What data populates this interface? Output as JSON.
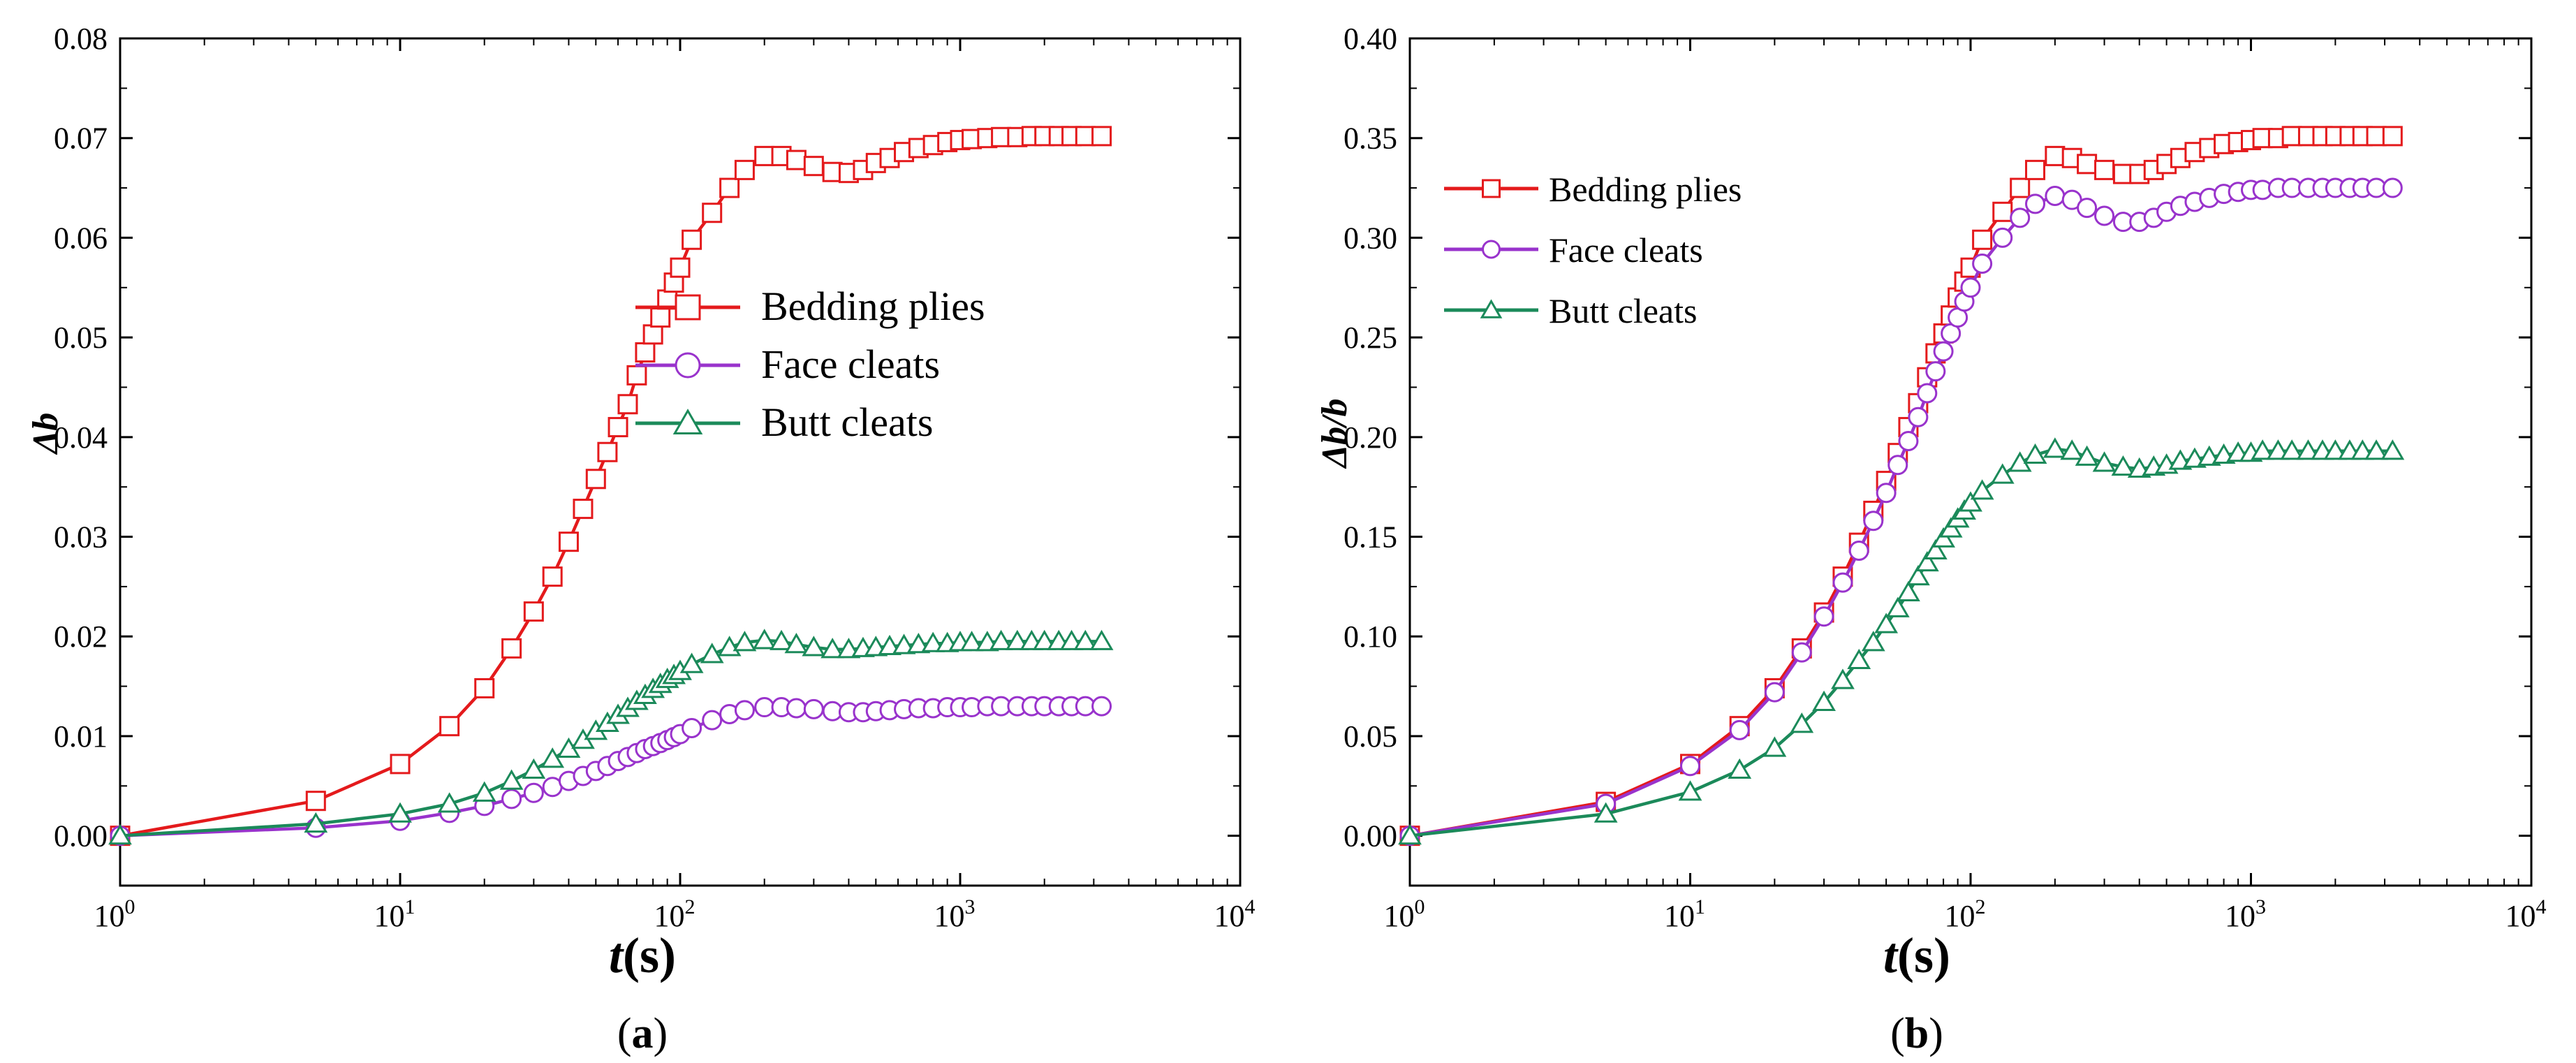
{
  "chart_data": [
    {
      "type": "line",
      "panel_label": "a",
      "title": "",
      "xlabel": "t",
      "xlabel_unit": "(s)",
      "ylabel": "Δb",
      "xscale": "log",
      "xlim": [
        1,
        10000
      ],
      "ylim": [
        -0.005,
        0.08
      ],
      "x_ticks": [
        {
          "base": "10",
          "exp": "0",
          "value": 1
        },
        {
          "base": "10",
          "exp": "1",
          "value": 10
        },
        {
          "base": "10",
          "exp": "2",
          "value": 100
        },
        {
          "base": "10",
          "exp": "3",
          "value": 1000
        },
        {
          "base": "10",
          "exp": "4",
          "value": 10000
        }
      ],
      "y_ticks": [
        "0.00",
        "0.01",
        "0.02",
        "0.03",
        "0.04",
        "0.05",
        "0.06",
        "0.07",
        "0.08"
      ],
      "legend_position": "center-right",
      "x": [
        1,
        5,
        10,
        15,
        20,
        25,
        30,
        35,
        40,
        45,
        50,
        55,
        60,
        65,
        70,
        75,
        80,
        85,
        90,
        95,
        100,
        110,
        130,
        150,
        170,
        200,
        230,
        260,
        300,
        350,
        400,
        450,
        500,
        560,
        630,
        710,
        800,
        900,
        1000,
        1100,
        1250,
        1400,
        1600,
        1800,
        2000,
        2250,
        2500,
        2800,
        3200
      ],
      "series": [
        {
          "name": "Bedding plies",
          "color": "#e41a1c",
          "marker": "square",
          "values": [
            0.0,
            0.0035,
            0.0072,
            0.011,
            0.0148,
            0.0188,
            0.0225,
            0.026,
            0.0295,
            0.0328,
            0.0358,
            0.0385,
            0.041,
            0.0433,
            0.0462,
            0.0485,
            0.0503,
            0.052,
            0.0538,
            0.0555,
            0.057,
            0.0598,
            0.0625,
            0.065,
            0.0668,
            0.0682,
            0.0682,
            0.0678,
            0.0672,
            0.0666,
            0.0665,
            0.0668,
            0.0675,
            0.068,
            0.0686,
            0.069,
            0.0693,
            0.0696,
            0.0698,
            0.0699,
            0.07,
            0.0701,
            0.0701,
            0.0702,
            0.0702,
            0.0702,
            0.0702,
            0.0702,
            0.0702
          ]
        },
        {
          "name": "Face cleats",
          "color": "#9933cc",
          "marker": "circle",
          "values": [
            0.0,
            0.0008,
            0.0015,
            0.0023,
            0.003,
            0.0037,
            0.0043,
            0.0049,
            0.0055,
            0.006,
            0.0065,
            0.007,
            0.0075,
            0.0079,
            0.0083,
            0.0087,
            0.009,
            0.0093,
            0.0096,
            0.0099,
            0.0102,
            0.0108,
            0.0116,
            0.0122,
            0.0126,
            0.0129,
            0.0129,
            0.0128,
            0.0127,
            0.0125,
            0.0124,
            0.0124,
            0.0125,
            0.0126,
            0.0127,
            0.0128,
            0.0128,
            0.0129,
            0.0129,
            0.0129,
            0.013,
            0.013,
            0.013,
            0.013,
            0.013,
            0.013,
            0.013,
            0.013,
            0.013
          ]
        },
        {
          "name": "Butt cleats",
          "color": "#1b8a5a",
          "marker": "triangle",
          "values": [
            0.0,
            0.0012,
            0.0022,
            0.0032,
            0.0043,
            0.0055,
            0.0066,
            0.0077,
            0.0087,
            0.0096,
            0.0105,
            0.0113,
            0.0121,
            0.0128,
            0.0135,
            0.0141,
            0.0147,
            0.0152,
            0.0157,
            0.0161,
            0.0165,
            0.0172,
            0.0182,
            0.0189,
            0.0194,
            0.0196,
            0.0195,
            0.0192,
            0.0189,
            0.0187,
            0.0187,
            0.0188,
            0.0189,
            0.019,
            0.0191,
            0.0192,
            0.0193,
            0.0193,
            0.0194,
            0.0194,
            0.0194,
            0.0195,
            0.0195,
            0.0195,
            0.0195,
            0.0195,
            0.0195,
            0.0195,
            0.0195
          ]
        }
      ]
    },
    {
      "type": "line",
      "panel_label": "b",
      "title": "",
      "xlabel": "t",
      "xlabel_unit": "(s)",
      "ylabel": "Δb/b",
      "xscale": "log",
      "xlim": [
        1,
        10000
      ],
      "ylim": [
        -0.025,
        0.4
      ],
      "x_ticks": [
        {
          "base": "10",
          "exp": "0",
          "value": 1
        },
        {
          "base": "10",
          "exp": "1",
          "value": 10
        },
        {
          "base": "10",
          "exp": "2",
          "value": 100
        },
        {
          "base": "10",
          "exp": "3",
          "value": 1000
        },
        {
          "base": "10",
          "exp": "4",
          "value": 10000
        }
      ],
      "y_ticks": [
        "0.00",
        "0.05",
        "0.10",
        "0.15",
        "0.20",
        "0.25",
        "0.30",
        "0.35",
        "0.40"
      ],
      "legend_position": "top-left",
      "x": [
        1,
        5,
        10,
        15,
        20,
        25,
        30,
        35,
        40,
        45,
        50,
        55,
        60,
        65,
        70,
        75,
        80,
        85,
        90,
        95,
        100,
        110,
        130,
        150,
        170,
        200,
        230,
        260,
        300,
        350,
        400,
        450,
        500,
        560,
        630,
        710,
        800,
        900,
        1000,
        1100,
        1250,
        1400,
        1600,
        1800,
        2000,
        2250,
        2500,
        2800,
        3200
      ],
      "series": [
        {
          "name": "Bedding plies",
          "color": "#e41a1c",
          "marker": "square",
          "values": [
            0.0,
            0.017,
            0.036,
            0.055,
            0.074,
            0.094,
            0.112,
            0.13,
            0.147,
            0.163,
            0.178,
            0.192,
            0.205,
            0.217,
            0.23,
            0.242,
            0.252,
            0.261,
            0.27,
            0.278,
            0.285,
            0.299,
            0.313,
            0.325,
            0.334,
            0.341,
            0.34,
            0.337,
            0.334,
            0.332,
            0.332,
            0.334,
            0.337,
            0.34,
            0.343,
            0.345,
            0.347,
            0.348,
            0.349,
            0.35,
            0.35,
            0.351,
            0.351,
            0.351,
            0.351,
            0.351,
            0.351,
            0.351,
            0.351
          ]
        },
        {
          "name": "Face cleats",
          "color": "#9933cc",
          "marker": "circle",
          "values": [
            0.0,
            0.016,
            0.035,
            0.053,
            0.072,
            0.092,
            0.11,
            0.127,
            0.143,
            0.158,
            0.172,
            0.186,
            0.198,
            0.21,
            0.222,
            0.233,
            0.243,
            0.252,
            0.26,
            0.268,
            0.275,
            0.287,
            0.3,
            0.31,
            0.317,
            0.321,
            0.319,
            0.315,
            0.311,
            0.308,
            0.308,
            0.31,
            0.313,
            0.316,
            0.318,
            0.32,
            0.322,
            0.323,
            0.324,
            0.324,
            0.325,
            0.325,
            0.325,
            0.325,
            0.325,
            0.325,
            0.325,
            0.325,
            0.325
          ]
        },
        {
          "name": "Butt cleats",
          "color": "#1b8a5a",
          "marker": "triangle",
          "values": [
            0.0,
            0.011,
            0.022,
            0.033,
            0.044,
            0.056,
            0.067,
            0.078,
            0.088,
            0.097,
            0.106,
            0.114,
            0.122,
            0.13,
            0.137,
            0.143,
            0.149,
            0.154,
            0.159,
            0.163,
            0.167,
            0.173,
            0.181,
            0.187,
            0.191,
            0.194,
            0.193,
            0.19,
            0.187,
            0.185,
            0.184,
            0.185,
            0.186,
            0.188,
            0.189,
            0.19,
            0.191,
            0.192,
            0.192,
            0.193,
            0.193,
            0.193,
            0.193,
            0.193,
            0.193,
            0.193,
            0.193,
            0.193,
            0.193
          ]
        }
      ]
    }
  ]
}
